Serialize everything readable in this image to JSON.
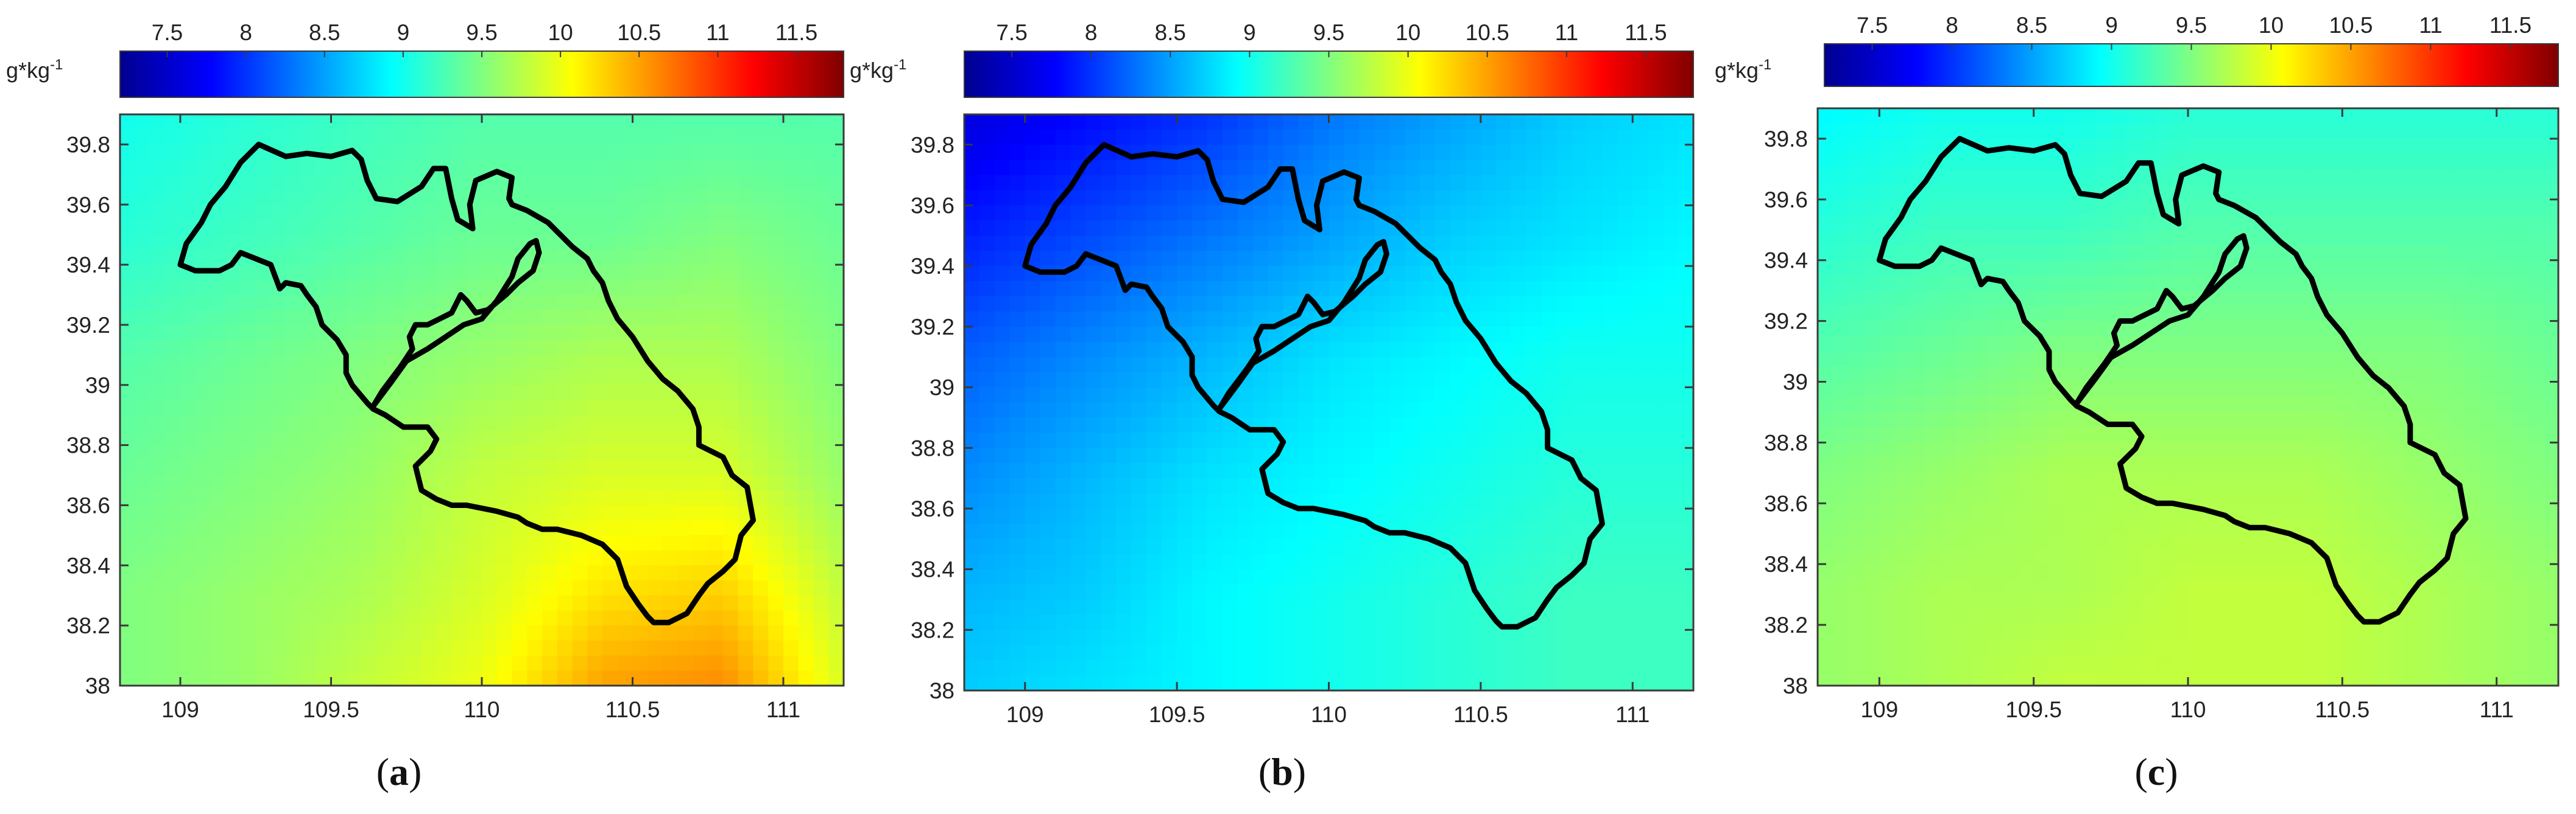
{
  "figure": {
    "colorbar_unit": "g*kg",
    "colorbar_unit_exponent": "-1",
    "colormap": [
      "#00008f",
      "#0000ff",
      "#0080ff",
      "#00ffff",
      "#80ff80",
      "#ffff00",
      "#ff8000",
      "#ff0000",
      "#800000"
    ],
    "boundary_color": "#000000"
  },
  "chart_data": [
    {
      "type": "heatmap",
      "panel_label": "a",
      "title": "",
      "xlabel": "",
      "ylabel": "",
      "xlim": [
        108.8,
        111.2
      ],
      "ylim": [
        38.0,
        39.9
      ],
      "xticks": [
        109,
        109.5,
        110,
        110.5,
        111
      ],
      "xtick_labels": [
        "109",
        "109.5",
        "110",
        "110.5",
        "111"
      ],
      "yticks": [
        38,
        38.2,
        38.4,
        38.6,
        38.8,
        39,
        39.2,
        39.4,
        39.6,
        39.8
      ],
      "ytick_labels": [
        "38",
        "38.2",
        "38.4",
        "38.6",
        "38.8",
        "39",
        "39.2",
        "39.4",
        "39.6",
        "39.8"
      ],
      "colorbar": {
        "range": [
          7.2,
          11.8
        ],
        "ticks": [
          7.5,
          8,
          8.5,
          9,
          9.5,
          10,
          10.5,
          11,
          11.5
        ],
        "tick_labels": [
          "7.5",
          "8",
          "8.5",
          "9",
          "9.5",
          "10",
          "10.5",
          "11",
          "11.5"
        ],
        "placement": "top"
      },
      "grid_x": [
        108.8,
        109.2,
        109.6,
        110.0,
        110.4,
        110.8,
        111.2
      ],
      "grid_y": [
        39.9,
        39.5,
        39.1,
        38.7,
        38.3,
        38.0
      ],
      "values": [
        [
          9.0,
          9.1,
          9.2,
          9.3,
          9.3,
          9.3,
          9.3
        ],
        [
          9.1,
          9.2,
          9.3,
          9.4,
          9.4,
          9.5,
          9.4
        ],
        [
          9.3,
          9.4,
          9.5,
          9.6,
          9.7,
          9.7,
          9.5
        ],
        [
          9.4,
          9.5,
          9.6,
          9.8,
          9.9,
          9.9,
          9.6
        ],
        [
          9.5,
          9.6,
          9.7,
          9.9,
          10.2,
          10.3,
          9.8
        ],
        [
          9.5,
          9.6,
          9.8,
          10.0,
          10.5,
          10.6,
          9.9
        ]
      ]
    },
    {
      "type": "heatmap",
      "panel_label": "b",
      "title": "",
      "xlabel": "",
      "ylabel": "",
      "xlim": [
        108.8,
        111.2
      ],
      "ylim": [
        38.0,
        39.9
      ],
      "xticks": [
        109,
        109.5,
        110,
        110.5,
        111
      ],
      "xtick_labels": [
        "109",
        "109.5",
        "110",
        "110.5",
        "111"
      ],
      "yticks": [
        38,
        38.2,
        38.4,
        38.6,
        38.8,
        39,
        39.2,
        39.4,
        39.6,
        39.8
      ],
      "ytick_labels": [
        "38",
        "38.2",
        "38.4",
        "38.6",
        "38.8",
        "39",
        "39.2",
        "39.4",
        "39.6",
        "39.8"
      ],
      "colorbar": {
        "range": [
          7.2,
          11.8
        ],
        "ticks": [
          7.5,
          8,
          8.5,
          9,
          9.5,
          10,
          10.5,
          11,
          11.5
        ],
        "tick_labels": [
          "7.5",
          "8",
          "8.5",
          "9",
          "9.5",
          "10",
          "10.5",
          "11",
          "11.5"
        ],
        "placement": "top"
      },
      "grid_x": [
        108.8,
        109.2,
        109.6,
        110.0,
        110.4,
        110.8,
        111.2
      ],
      "grid_y": [
        39.9,
        39.5,
        39.1,
        38.7,
        38.3,
        38.0
      ],
      "values": [
        [
          7.6,
          7.8,
          8.0,
          8.3,
          8.5,
          8.7,
          8.8
        ],
        [
          7.9,
          8.1,
          8.3,
          8.5,
          8.7,
          8.8,
          8.9
        ],
        [
          8.2,
          8.4,
          8.6,
          8.8,
          8.9,
          9.0,
          9.0
        ],
        [
          8.4,
          8.6,
          8.8,
          8.9,
          9.0,
          9.1,
          9.1
        ],
        [
          8.6,
          8.7,
          8.9,
          9.0,
          9.1,
          9.2,
          9.2
        ],
        [
          8.7,
          8.8,
          8.9,
          9.0,
          9.1,
          9.2,
          9.2
        ]
      ]
    },
    {
      "type": "heatmap",
      "panel_label": "c",
      "title": "",
      "xlabel": "",
      "ylabel": "",
      "xlim": [
        108.8,
        111.2
      ],
      "ylim": [
        38.0,
        39.9
      ],
      "xticks": [
        109,
        109.5,
        110,
        110.5,
        111
      ],
      "xtick_labels": [
        "109",
        "109.5",
        "110",
        "110.5",
        "111"
      ],
      "yticks": [
        38,
        38.2,
        38.4,
        38.6,
        38.8,
        39,
        39.2,
        39.4,
        39.6,
        39.8
      ],
      "ytick_labels": [
        "38",
        "38.2",
        "38.4",
        "38.6",
        "38.8",
        "39",
        "39.2",
        "39.4",
        "39.6",
        "39.8"
      ],
      "colorbar": {
        "range": [
          7.2,
          11.8
        ],
        "ticks": [
          7.5,
          8,
          8.5,
          9,
          9.5,
          10,
          10.5,
          11,
          11.5
        ],
        "tick_labels": [
          "7.5",
          "8",
          "8.5",
          "9",
          "9.5",
          "10",
          "10.5",
          "11",
          "11.5"
        ],
        "placement": "top"
      },
      "grid_x": [
        108.8,
        109.2,
        109.6,
        110.0,
        110.4,
        110.8,
        111.2
      ],
      "grid_y": [
        39.9,
        39.5,
        39.1,
        38.7,
        38.3,
        38.0
      ],
      "values": [
        [
          8.9,
          9.0,
          9.0,
          9.1,
          9.1,
          9.1,
          9.1
        ],
        [
          9.1,
          9.2,
          9.2,
          9.3,
          9.3,
          9.3,
          9.3
        ],
        [
          9.3,
          9.4,
          9.5,
          9.5,
          9.5,
          9.5,
          9.4
        ],
        [
          9.5,
          9.6,
          9.7,
          9.7,
          9.7,
          9.6,
          9.5
        ],
        [
          9.6,
          9.7,
          9.7,
          9.8,
          9.8,
          9.7,
          9.6
        ],
        [
          9.6,
          9.7,
          9.8,
          9.8,
          9.8,
          9.7,
          9.6
        ]
      ]
    }
  ],
  "region_boundary": {
    "lon": [
      109.26,
      109.35,
      109.42,
      109.5,
      109.57,
      109.6,
      109.62,
      109.65,
      109.72,
      109.8,
      109.84,
      109.88,
      109.9,
      109.92,
      109.97,
      109.96,
      109.98,
      110.05,
      110.1,
      110.09,
      110.1,
      110.15,
      110.22,
      110.26,
      110.3,
      110.35,
      110.37,
      110.4,
      110.42,
      110.45,
      110.5,
      110.55,
      110.6,
      110.65,
      110.7,
      110.72,
      110.72,
      110.8,
      110.83,
      110.88,
      110.9,
      110.86,
      110.84,
      110.8,
      110.75,
      110.72,
      110.68,
      110.62,
      110.57,
      110.55,
      110.52,
      110.48,
      110.45,
      110.4,
      110.33,
      110.25,
      110.2,
      110.15,
      110.12,
      110.05,
      109.95,
      109.9,
      109.85,
      109.8,
      109.78,
      109.83,
      109.85,
      109.82,
      109.74,
      109.68,
      109.64,
      109.62,
      109.57,
      109.55,
      109.55,
      109.52,
      109.47,
      109.45,
      109.42,
      109.4,
      109.35,
      109.33,
      109.3,
      109.25,
      109.2,
      109.17,
      109.13,
      109.05,
      109.0,
      109.02,
      109.07,
      109.1,
      109.15,
      109.2,
      109.26
    ],
    "lat": [
      39.8,
      39.76,
      39.77,
      39.76,
      39.78,
      39.75,
      39.68,
      39.62,
      39.61,
      39.66,
      39.72,
      39.72,
      39.62,
      39.55,
      39.52,
      39.6,
      39.68,
      39.71,
      39.69,
      39.62,
      39.6,
      39.58,
      39.54,
      39.5,
      39.46,
      39.42,
      39.38,
      39.34,
      39.28,
      39.22,
      39.16,
      39.08,
      39.02,
      38.98,
      38.92,
      38.86,
      38.8,
      38.76,
      38.7,
      38.66,
      38.55,
      38.5,
      38.42,
      38.38,
      38.34,
      38.3,
      38.24,
      38.21,
      38.21,
      38.23,
      38.27,
      38.33,
      38.42,
      38.47,
      38.5,
      38.52,
      38.52,
      38.54,
      38.56,
      38.58,
      38.6,
      38.6,
      38.62,
      38.65,
      38.73,
      38.78,
      38.82,
      38.86,
      38.86,
      38.9,
      38.92,
      38.94,
      39.0,
      39.04,
      39.1,
      39.15,
      39.2,
      39.26,
      39.3,
      39.33,
      39.34,
      39.32,
      39.4,
      39.42,
      39.44,
      39.4,
      39.38,
      39.38,
      39.4,
      39.47,
      39.54,
      39.6,
      39.66,
      39.74,
      39.8
    ],
    "inner_lon": [
      109.64,
      109.7,
      109.75,
      109.82,
      109.88,
      109.94,
      110.0,
      110.05,
      110.1,
      110.12,
      110.16,
      110.18,
      110.19,
      110.17,
      110.12,
      110.08,
      110.02,
      109.98,
      109.95,
      109.93,
      109.9,
      109.86,
      109.82,
      109.78,
      109.76,
      109.77,
      109.73,
      109.67,
      109.64
    ],
    "inner_lat": [
      38.93,
      39.01,
      39.08,
      39.12,
      39.16,
      39.2,
      39.22,
      39.28,
      39.36,
      39.42,
      39.47,
      39.48,
      39.44,
      39.38,
      39.34,
      39.3,
      39.25,
      39.24,
      39.28,
      39.3,
      39.24,
      39.22,
      39.2,
      39.2,
      39.16,
      39.12,
      39.06,
      38.98,
      38.93
    ]
  }
}
